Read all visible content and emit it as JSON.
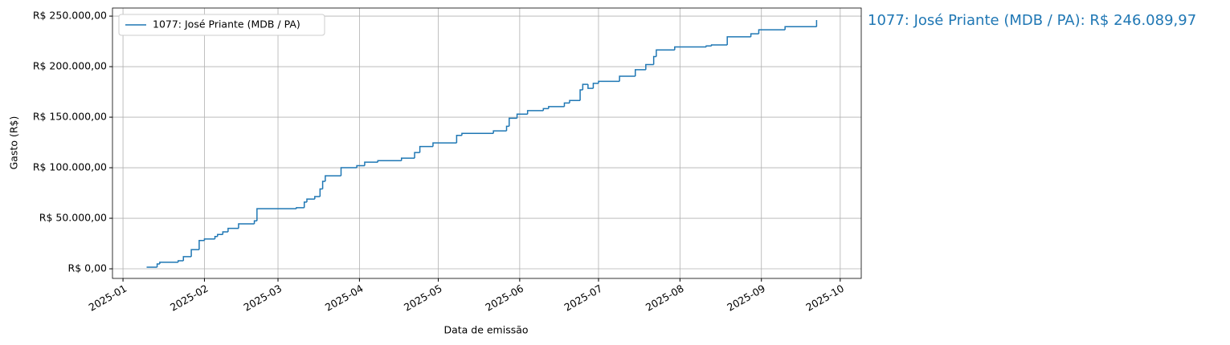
{
  "chart_data": {
    "type": "step",
    "xlabel": "Data de emissão",
    "ylabel": "Gasto (R$)",
    "annotation": "1077: José Priante (MDB / PA): R$ 246.089,97",
    "xlim": [
      -4,
      281
    ],
    "xticks": [
      {
        "value": 0,
        "label": "2025-01"
      },
      {
        "value": 31,
        "label": "2025-02"
      },
      {
        "value": 59,
        "label": "2025-03"
      },
      {
        "value": 90,
        "label": "2025-04"
      },
      {
        "value": 120,
        "label": "2025-05"
      },
      {
        "value": 151,
        "label": "2025-06"
      },
      {
        "value": 181,
        "label": "2025-07"
      },
      {
        "value": 212,
        "label": "2025-08"
      },
      {
        "value": 243,
        "label": "2025-09"
      },
      {
        "value": 273,
        "label": "2025-10"
      }
    ],
    "ylim": [
      -9500,
      258000
    ],
    "yticks": [
      {
        "value": 0,
        "label": "R$ 0,00"
      },
      {
        "value": 50000,
        "label": "R$ 50.000,00"
      },
      {
        "value": 100000,
        "label": "R$ 100.000,00"
      },
      {
        "value": 150000,
        "label": "R$ 150.000,00"
      },
      {
        "value": 200000,
        "label": "R$ 200.000,00"
      },
      {
        "value": 250000,
        "label": "R$ 250.000,00"
      }
    ],
    "grid": true,
    "legend": "upper left",
    "series": [
      {
        "name": "1077: José Priante (MDB / PA)",
        "color": "#1f77b4",
        "x": [
          9,
          13,
          14,
          21,
          23,
          26,
          29,
          31,
          35,
          36,
          38,
          40,
          44,
          50,
          51,
          66,
          69,
          70,
          73,
          75,
          76,
          77,
          83,
          89,
          92,
          97,
          106,
          111,
          113,
          118,
          127,
          129,
          141,
          146,
          147,
          150,
          154,
          160,
          162,
          168,
          170,
          174,
          175,
          177,
          179,
          181,
          189,
          195,
          199,
          202,
          203,
          210,
          222,
          224,
          230,
          239,
          242,
          252,
          264
        ],
        "values": [
          1600,
          4800,
          6500,
          8000,
          12000,
          19000,
          28000,
          29500,
          32000,
          34000,
          36500,
          40000,
          44500,
          47500,
          59500,
          60500,
          66000,
          69000,
          71500,
          79000,
          86500,
          92000,
          100000,
          102000,
          105500,
          107000,
          109500,
          115000,
          121000,
          124500,
          132000,
          134000,
          136500,
          141000,
          149000,
          153000,
          156500,
          158500,
          160500,
          164000,
          166500,
          177000,
          182500,
          178500,
          183500,
          185500,
          190500,
          197000,
          202000,
          210000,
          216500,
          219500,
          220500,
          221500,
          229500,
          232500,
          236500,
          239500,
          246089.97
        ]
      }
    ]
  }
}
